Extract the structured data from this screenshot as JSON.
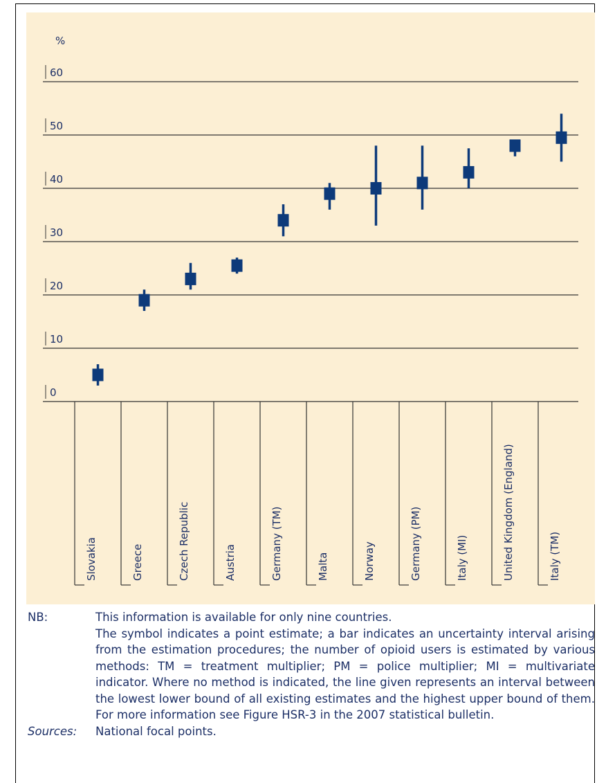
{
  "chart_data": {
    "type": "interval",
    "y_label": "%",
    "categories": [
      "Slovakia",
      "Greece",
      "Czech Republic",
      "Austria",
      "Germany (TM)",
      "Malta",
      "Norway",
      "Germany (PM)",
      "Italy (MI)",
      "United Kingdom (England)",
      "Italy (TM)"
    ],
    "values": [
      5,
      19,
      23,
      25.5,
      34,
      39,
      40,
      41,
      43,
      48,
      49.5
    ],
    "lower": [
      3,
      17,
      21,
      24,
      31,
      36,
      33,
      36,
      40,
      46,
      45
    ],
    "upper": [
      7,
      21,
      26,
      27,
      37,
      41,
      48,
      48,
      47.5,
      49,
      54
    ],
    "color": "#0d3a7a",
    "ylim": [
      0,
      60
    ],
    "yticks": [
      0,
      10,
      20,
      30,
      40,
      50,
      60
    ],
    "grid": true
  },
  "notes": {
    "nb_label": "NB:",
    "nb_lines": [
      "This information is available for only nine countries.",
      "The symbol indicates a point estimate; a bar indicates an uncertainty interval arising from the estimation procedures; the number of opioid users is estimated by various methods: TM = treatment multiplier; PM = police multiplier; MI = multivariate indicator. Where no method is indicated, the line given represents an interval between the lowest lower bound of all existing estimates and the highest upper bound of them. For more information see Figure HSR-3 in the 2007 statistical bulletin."
    ],
    "sources_label": "Sources:",
    "sources": "National focal points."
  }
}
